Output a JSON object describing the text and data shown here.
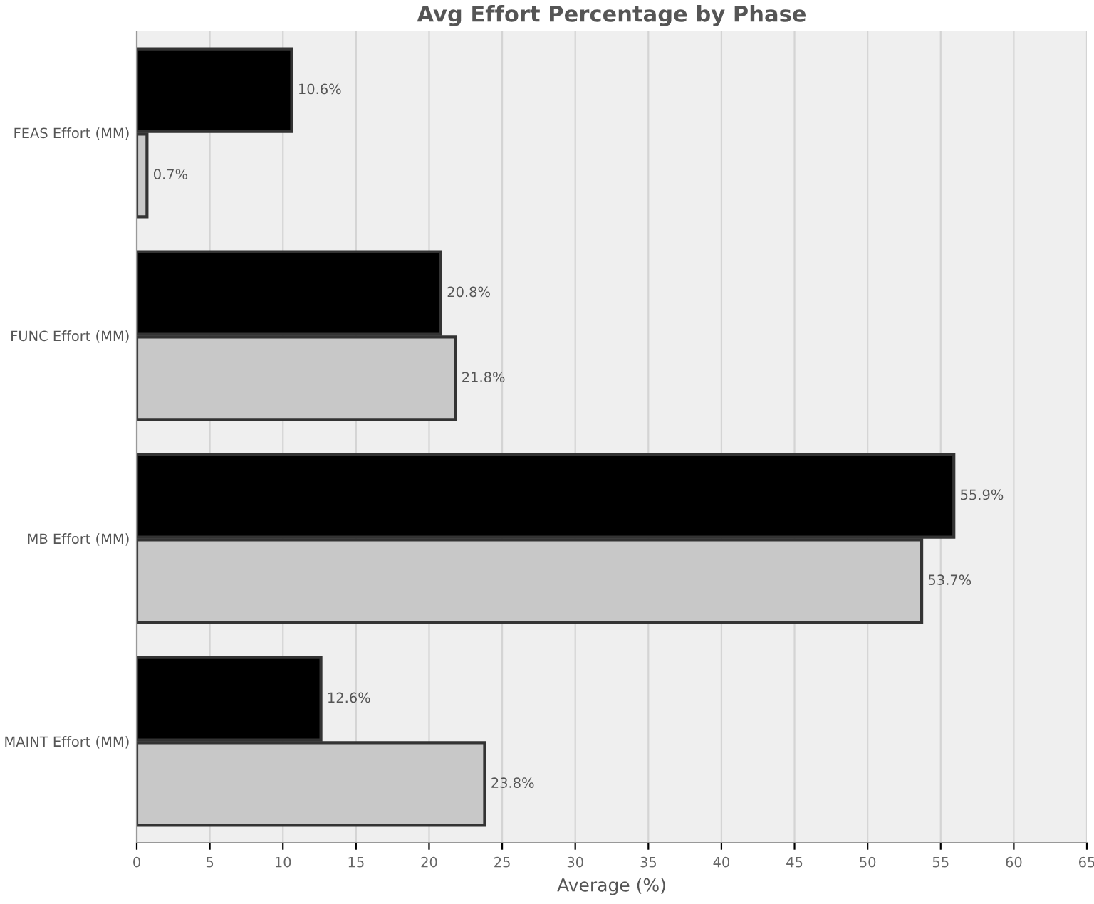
{
  "chart_data": {
    "type": "bar",
    "orientation": "horizontal",
    "title": "Avg Effort Percentage by Phase",
    "xlabel": "Average (%)",
    "categories": [
      "FEAS Effort (MM)",
      "FUNC Effort (MM)",
      "MB Effort (MM)",
      "MAINT Effort (MM)"
    ],
    "series": [
      {
        "color": "#000000",
        "values": [
          10.6,
          20.8,
          55.9,
          12.6
        ],
        "value_labels": [
          "10.6%",
          "20.8%",
          "55.9%",
          "12.6%"
        ]
      },
      {
        "color": "#c8c8c8",
        "values": [
          0.7,
          21.8,
          53.7,
          23.8
        ],
        "value_labels": [
          "0.7%",
          "21.8%",
          "53.7%",
          "23.8%"
        ]
      }
    ],
    "xlim": [
      0,
      65
    ],
    "xticks": [
      0,
      5,
      10,
      15,
      20,
      25,
      30,
      35,
      40,
      45,
      50,
      55,
      60,
      65
    ],
    "grid": "x",
    "legend": false
  }
}
